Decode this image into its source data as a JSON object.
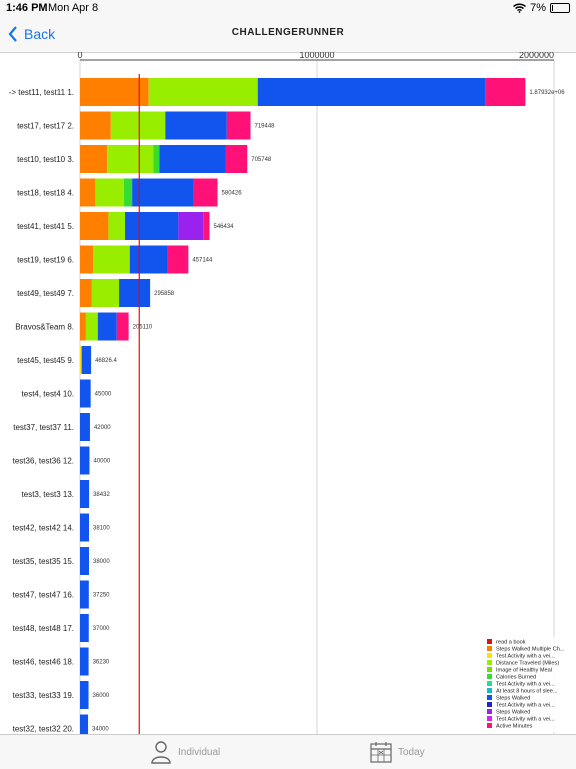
{
  "status": {
    "time": "1:46 PM",
    "date": "Mon Apr 8",
    "battery": "7%",
    "battery_level": 0.07
  },
  "nav": {
    "back_label": "Back",
    "title": "CHALLENGERUNNER"
  },
  "tabs": [
    {
      "label": "Individual",
      "icon": "person-icon"
    },
    {
      "label": "Today",
      "icon": "calendar-icon"
    }
  ],
  "colors": {
    "red_line": "#ff0000",
    "series": [
      "#dd1111",
      "#ff8000",
      "#ffe000",
      "#99ee00",
      "#77dd00",
      "#33dd33",
      "#22dd99",
      "#11bbcc",
      "#1155ee",
      "#2222cc",
      "#9922ee",
      "#dd22ee",
      "#ff1177"
    ]
  },
  "chart_data": {
    "type": "bar",
    "orientation": "horizontal",
    "stacked": true,
    "xlim": [
      0,
      2000000
    ],
    "x_ticks": [
      "0",
      "1000000",
      "2000000"
    ],
    "reference_line": 250000,
    "categories": [
      "-> test11, test11 1.",
      "test17, test17 2.",
      "test10, test10 3.",
      "test18, test18 4.",
      "test41, test41 5.",
      "test19, test19 6.",
      "test49, test49 7.",
      "Bravos&Team 8.",
      "test45, test45 9.",
      "test4, test4 10.",
      "test37, test37 11.",
      "test36, test36 12.",
      "test3, test3 13.",
      "test42, test42 14.",
      "test35, test35 15.",
      "test47, test47 16.",
      "test48, test48 17.",
      "test46, test46 18.",
      "test33, test33 19.",
      "test32, test32 20."
    ],
    "totals": [
      "1.87932e+06",
      "719448",
      "705748",
      "580426",
      "546434",
      "457144",
      "295858",
      "205110",
      "46826.4",
      "45000",
      "42000",
      "40000",
      "38432",
      "38100",
      "38000",
      "37250",
      "37000",
      "36230",
      "36000",
      "34000"
    ],
    "series": [
      {
        "name": "read a book",
        "values": [
          0,
          0,
          0,
          0,
          0,
          0,
          0,
          0,
          0,
          0,
          0,
          0,
          0,
          0,
          0,
          0,
          0,
          0,
          0,
          0
        ]
      },
      {
        "name": "Steps Walked Multiple Ch...",
        "values": [
          290000,
          130000,
          115000,
          65000,
          120000,
          55000,
          50000,
          25000,
          0,
          0,
          0,
          0,
          0,
          0,
          0,
          0,
          0,
          0,
          0,
          0
        ]
      },
      {
        "name": "Test Activity with a vei...",
        "values": [
          0,
          0,
          0,
          0,
          0,
          0,
          0,
          0,
          6826,
          0,
          0,
          0,
          0,
          0,
          0,
          0,
          0,
          0,
          0,
          0
        ]
      },
      {
        "name": "Distance Traveled (Miles)",
        "values": [
          460000,
          230000,
          195000,
          120000,
          70000,
          155000,
          115000,
          50000,
          0,
          0,
          0,
          0,
          0,
          0,
          0,
          0,
          0,
          0,
          0,
          0
        ]
      },
      {
        "name": "Image of Healthy Meal",
        "values": [
          0,
          0,
          0,
          0,
          0,
          0,
          0,
          0,
          0,
          0,
          0,
          0,
          0,
          0,
          0,
          0,
          0,
          0,
          0,
          0
        ]
      },
      {
        "name": "Calories Burned",
        "values": [
          0,
          0,
          25000,
          35000,
          0,
          0,
          0,
          0,
          0,
          0,
          0,
          0,
          0,
          0,
          0,
          0,
          0,
          0,
          0,
          0
        ]
      },
      {
        "name": "Test Activity with a vei...",
        "values": [
          0,
          0,
          0,
          0,
          0,
          0,
          0,
          0,
          0,
          0,
          0,
          0,
          0,
          0,
          0,
          0,
          0,
          0,
          0,
          0
        ]
      },
      {
        "name": "At least 8 hours of slee...",
        "values": [
          0,
          0,
          0,
          0,
          0,
          0,
          0,
          0,
          0,
          0,
          0,
          0,
          0,
          0,
          0,
          0,
          0,
          0,
          0,
          0
        ]
      },
      {
        "name": "Steps Walked",
        "values": [
          959320,
          259448,
          280748,
          260426,
          225000,
          157144,
          130858,
          80110,
          40000,
          45000,
          42000,
          40000,
          38432,
          38100,
          38000,
          37250,
          37000,
          36230,
          36000,
          34000
        ]
      },
      {
        "name": "Test Activity with a vei...",
        "values": [
          0,
          0,
          0,
          0,
          0,
          0,
          0,
          0,
          0,
          0,
          0,
          0,
          0,
          0,
          0,
          0,
          0,
          0,
          0,
          0
        ]
      },
      {
        "name": "Steps Walked",
        "values": [
          0,
          0,
          0,
          0,
          105000,
          0,
          0,
          0,
          0,
          0,
          0,
          0,
          0,
          0,
          0,
          0,
          0,
          0,
          0,
          0
        ]
      },
      {
        "name": "Test Activity with a vei...",
        "values": [
          0,
          0,
          0,
          0,
          0,
          0,
          0,
          0,
          0,
          0,
          0,
          0,
          0,
          0,
          0,
          0,
          0,
          0,
          0,
          0
        ]
      },
      {
        "name": "Active Minutes",
        "values": [
          170000,
          100000,
          90000,
          100000,
          26434,
          90000,
          0,
          50000,
          0,
          0,
          0,
          0,
          0,
          0,
          0,
          0,
          0,
          0,
          0,
          0
        ]
      }
    ],
    "legend_position": "bottom-right"
  }
}
